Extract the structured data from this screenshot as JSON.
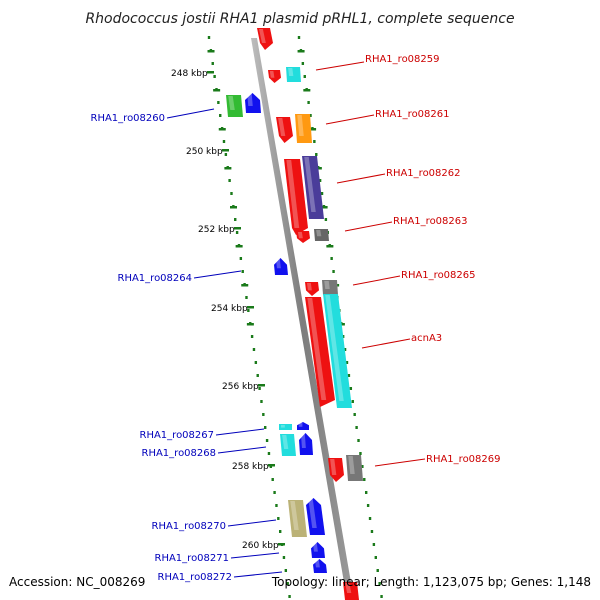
{
  "title": "Rhodococcus jostii RHA1 plasmid pRHL1, complete sequence",
  "footer": {
    "accession": "Accession: NC_008269",
    "summary": "Topology: linear; Length: 1,123,075 bp; Genes: 1,148"
  },
  "colors": {
    "backbone": "#8a8a8a",
    "tick": "#1a7a1a",
    "forward_label": "#cc0000",
    "reverse_label": "#0000bb"
  },
  "ticks": [
    "248 kbp",
    "250 kbp",
    "252 kbp",
    "254 kbp",
    "256 kbp",
    "258 kbp",
    "260 kbp"
  ],
  "genes_right": [
    {
      "name": "RHA1_ro08259"
    },
    {
      "name": "RHA1_ro08261"
    },
    {
      "name": "RHA1_ro08262"
    },
    {
      "name": "RHA1_ro08263"
    },
    {
      "name": "RHA1_ro08265"
    },
    {
      "name": "acnA3"
    },
    {
      "name": "RHA1_ro08269"
    }
  ],
  "genes_left": [
    {
      "name": "RHA1_ro08260"
    },
    {
      "name": "RHA1_ro08264"
    },
    {
      "name": "RHA1_ro08267"
    },
    {
      "name": "RHA1_ro08268"
    },
    {
      "name": "RHA1_ro08270"
    },
    {
      "name": "RHA1_ro08271"
    },
    {
      "name": "RHA1_ro08272"
    }
  ]
}
